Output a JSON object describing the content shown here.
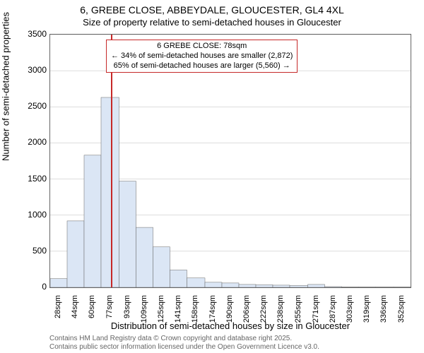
{
  "title_main": "6, GREBE CLOSE, ABBEYDALE, GLOUCESTER, GL4 4XL",
  "title_sub": "Size of property relative to semi-detached houses in Gloucester",
  "y_axis_title": "Number of semi-detached properties",
  "x_axis_title": "Distribution of semi-detached houses by size in Gloucester",
  "attribution_line1": "Contains HM Land Registry data © Crown copyright and database right 2025.",
  "attribution_line2": "Contains public sector information licensed under the Open Government Licence v3.0.",
  "callout": {
    "line1": "6 GREBE CLOSE: 78sqm",
    "line2": "← 34% of semi-detached houses are smaller (2,872)",
    "line3": "65% of semi-detached houses are larger (5,560) →"
  },
  "marker_x_value": 78,
  "chart": {
    "type": "histogram",
    "y_min": 0,
    "y_max": 3500,
    "y_ticks": [
      0,
      500,
      1000,
      1500,
      2000,
      2500,
      3000,
      3500
    ],
    "x_min": 20,
    "x_max": 360,
    "bar_fill": "#dbe6f5",
    "bar_stroke": "#666",
    "marker_color": "#c62828",
    "grid_color": "#bbb",
    "background_color": "#ffffff",
    "categories": [
      "28sqm",
      "44sqm",
      "60sqm",
      "77sqm",
      "93sqm",
      "109sqm",
      "125sqm",
      "141sqm",
      "158sqm",
      "174sqm",
      "190sqm",
      "206sqm",
      "222sqm",
      "238sqm",
      "255sqm",
      "271sqm",
      "287sqm",
      "303sqm",
      "319sqm",
      "336sqm",
      "352sqm"
    ],
    "bin_edges": [
      20,
      36,
      52,
      68,
      85,
      101,
      117,
      133,
      149,
      166,
      182,
      198,
      214,
      230,
      246,
      263,
      279,
      295,
      311,
      327,
      344,
      360
    ],
    "values": [
      120,
      920,
      1830,
      2630,
      1470,
      830,
      560,
      240,
      130,
      70,
      60,
      40,
      35,
      30,
      25,
      40,
      10,
      5,
      5,
      5,
      5
    ]
  }
}
